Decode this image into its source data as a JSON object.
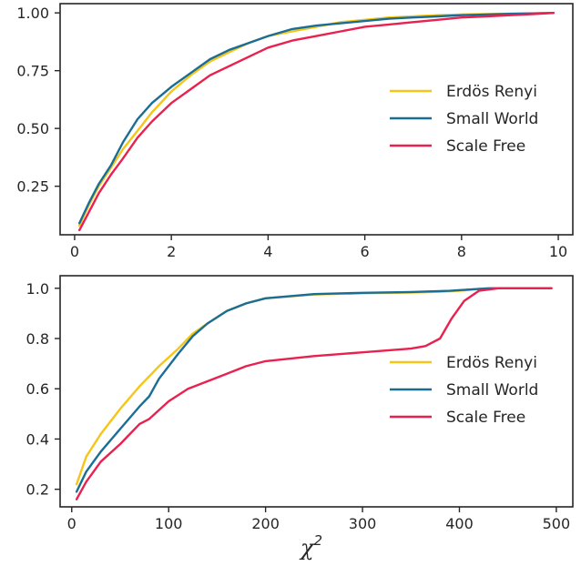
{
  "chart_data": [
    {
      "type": "line",
      "xlim": [
        -0.3,
        10.3
      ],
      "ylim": [
        0.04,
        1.04
      ],
      "xticks": [
        0,
        2,
        4,
        6,
        8,
        10
      ],
      "xtick_labels": [
        "0",
        "2",
        "4",
        "6",
        "8",
        "10"
      ],
      "yticks": [
        0.25,
        0.5,
        0.75,
        1.0
      ],
      "ytick_labels": [
        "0.25",
        "0.50",
        "0.75",
        "1.00"
      ],
      "legend_position": "center-right",
      "grid": false,
      "series": [
        {
          "name": "Erdös Renyi",
          "color": "#f5c518",
          "x": [
            0.1,
            0.3,
            0.5,
            0.75,
            1.0,
            1.3,
            1.6,
            2.0,
            2.4,
            2.8,
            3.2,
            3.6,
            4.0,
            4.5,
            5.0,
            5.5,
            6.0,
            6.5,
            7.0,
            7.5,
            8.0,
            8.5,
            9.0,
            9.5,
            9.9
          ],
          "y": [
            0.08,
            0.17,
            0.25,
            0.33,
            0.41,
            0.49,
            0.57,
            0.66,
            0.73,
            0.79,
            0.83,
            0.87,
            0.9,
            0.92,
            0.94,
            0.96,
            0.97,
            0.98,
            0.985,
            0.99,
            0.993,
            0.995,
            0.997,
            0.998,
            1.0
          ]
        },
        {
          "name": "Small World",
          "color": "#1a6e96",
          "x": [
            0.1,
            0.3,
            0.5,
            0.75,
            1.0,
            1.3,
            1.6,
            2.0,
            2.4,
            2.8,
            3.2,
            3.6,
            4.0,
            4.5,
            5.0,
            5.5,
            6.0,
            6.5,
            7.0,
            7.5,
            8.0,
            8.5,
            9.0,
            9.5,
            9.9
          ],
          "y": [
            0.09,
            0.18,
            0.26,
            0.34,
            0.44,
            0.54,
            0.61,
            0.68,
            0.74,
            0.8,
            0.84,
            0.87,
            0.9,
            0.93,
            0.945,
            0.955,
            0.965,
            0.975,
            0.98,
            0.985,
            0.99,
            0.993,
            0.996,
            0.998,
            1.0
          ]
        },
        {
          "name": "Scale Free",
          "color": "#e8214f",
          "x": [
            0.1,
            0.3,
            0.5,
            0.75,
            1.0,
            1.3,
            1.6,
            2.0,
            2.4,
            2.8,
            3.2,
            3.6,
            4.0,
            4.5,
            5.0,
            5.5,
            6.0,
            6.5,
            7.0,
            7.5,
            8.0,
            8.5,
            9.0,
            9.5,
            9.9
          ],
          "y": [
            0.06,
            0.14,
            0.22,
            0.3,
            0.37,
            0.46,
            0.53,
            0.61,
            0.67,
            0.73,
            0.77,
            0.81,
            0.85,
            0.88,
            0.9,
            0.92,
            0.94,
            0.95,
            0.96,
            0.97,
            0.98,
            0.985,
            0.99,
            0.995,
            1.0
          ]
        }
      ]
    },
    {
      "type": "line",
      "xlim": [
        -12,
        517
      ],
      "ylim": [
        0.13,
        1.05
      ],
      "xlabel": "χ",
      "xlabel_superscript": "2",
      "xticks": [
        0,
        100,
        200,
        300,
        400,
        500
      ],
      "xtick_labels": [
        "0",
        "100",
        "200",
        "300",
        "400",
        "500"
      ],
      "yticks": [
        0.2,
        0.4,
        0.6,
        0.8,
        1.0
      ],
      "ytick_labels": [
        "0.2",
        "0.4",
        "0.6",
        "0.8",
        "1.0"
      ],
      "legend_position": "center-right",
      "grid": false,
      "series": [
        {
          "name": "Erdös Renyi",
          "color": "#f5c518",
          "x": [
            5,
            15,
            30,
            50,
            70,
            90,
            110,
            125,
            140,
            160,
            180,
            200,
            250,
            300,
            350,
            380,
            400,
            420,
            440,
            495
          ],
          "y": [
            0.22,
            0.33,
            0.42,
            0.52,
            0.61,
            0.69,
            0.76,
            0.82,
            0.86,
            0.91,
            0.94,
            0.96,
            0.975,
            0.98,
            0.983,
            0.986,
            0.99,
            0.997,
            1.0,
            1.0
          ]
        },
        {
          "name": "Small World",
          "color": "#1a6e96",
          "x": [
            5,
            15,
            30,
            50,
            70,
            80,
            90,
            110,
            125,
            140,
            160,
            180,
            200,
            250,
            300,
            350,
            390,
            410,
            430,
            495
          ],
          "y": [
            0.19,
            0.27,
            0.35,
            0.44,
            0.53,
            0.57,
            0.64,
            0.74,
            0.81,
            0.86,
            0.91,
            0.94,
            0.96,
            0.977,
            0.982,
            0.985,
            0.99,
            0.995,
            1.0,
            1.0
          ]
        },
        {
          "name": "Scale Free",
          "color": "#e8214f",
          "x": [
            5,
            15,
            30,
            50,
            70,
            80,
            100,
            120,
            140,
            160,
            180,
            200,
            250,
            300,
            350,
            365,
            380,
            392,
            405,
            420,
            440,
            495
          ],
          "y": [
            0.16,
            0.23,
            0.31,
            0.38,
            0.46,
            0.48,
            0.55,
            0.6,
            0.63,
            0.66,
            0.69,
            0.71,
            0.73,
            0.745,
            0.76,
            0.77,
            0.8,
            0.88,
            0.95,
            0.99,
            1.0,
            1.0
          ]
        }
      ]
    }
  ]
}
